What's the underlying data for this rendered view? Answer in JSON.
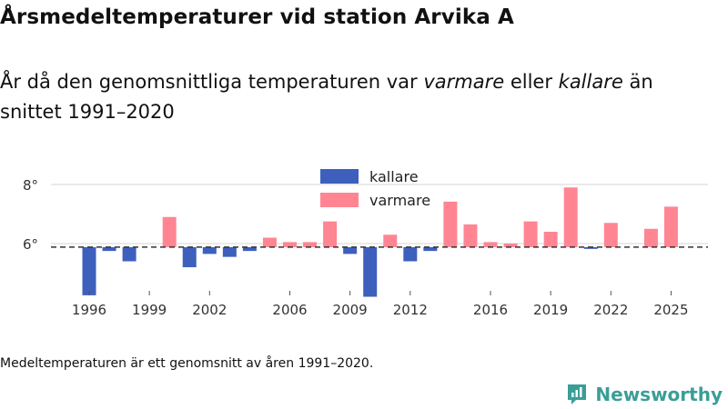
{
  "header": {
    "title": "Årsmedeltemperaturer vid station Arvika A",
    "subtitle_start": "År då den genomsnittliga temperaturen var ",
    "subtitle_warm": "varmare",
    "subtitle_mid": " eller ",
    "subtitle_cold": "kallare",
    "subtitle_end": " än snittet 1991–2020"
  },
  "footer": {
    "note": "Medeltemperaturen är ett genomsnitt av åren 1991–2020.",
    "brand": "Newsworthy"
  },
  "colors": {
    "warm": "#ff8593",
    "cold": "#3d60bd",
    "brand": "#3a9e97",
    "grid": "#dddddd",
    "baseline": "#333333"
  },
  "chart_data": {
    "type": "bar",
    "title": "Årsmedeltemperaturer vid station Arvika A",
    "baseline_label": "snittet 1991–2020",
    "baseline": 5.88,
    "ylim": [
      4.2,
      8.3
    ],
    "yticks": [
      6,
      8
    ],
    "ytick_labels": [
      "6°",
      "8°"
    ],
    "xticks": [
      1996,
      1999,
      2002,
      2006,
      2009,
      2012,
      2016,
      2019,
      2022,
      2025
    ],
    "legend": [
      {
        "key": "cold",
        "label": "kallare"
      },
      {
        "key": "warm",
        "label": "varmare"
      }
    ],
    "years": [
      1996,
      1997,
      1998,
      1999,
      2000,
      2001,
      2002,
      2003,
      2004,
      2005,
      2006,
      2007,
      2008,
      2009,
      2010,
      2011,
      2012,
      2013,
      2014,
      2015,
      2016,
      2017,
      2018,
      2019,
      2020,
      2021,
      2022,
      2023,
      2024,
      2025
    ],
    "values": [
      4.25,
      5.75,
      5.4,
      5.88,
      6.9,
      5.2,
      5.65,
      5.55,
      5.75,
      6.2,
      6.05,
      6.05,
      6.75,
      5.65,
      4.2,
      6.3,
      5.4,
      5.75,
      7.42,
      6.65,
      6.05,
      6.0,
      6.75,
      6.4,
      7.9,
      5.82,
      6.7,
      5.88,
      6.5,
      7.25
    ]
  }
}
